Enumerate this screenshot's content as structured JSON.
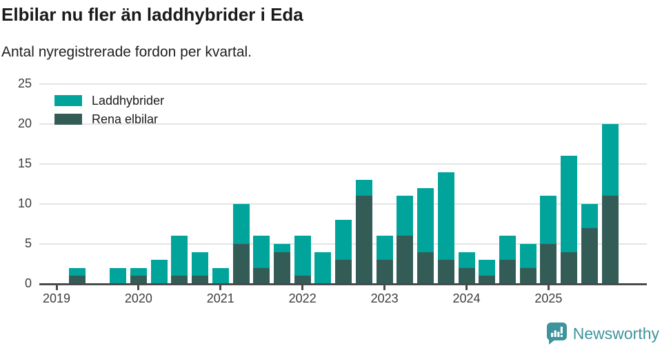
{
  "header": {
    "title": "Elbilar nu fler än laddhybrider i Eda",
    "subtitle": "Antal nyregistrerade fordon per kvartal."
  },
  "footer": {
    "brand": "Newsworthy",
    "logo_icon": "bar-chart-speech-bubble-icon"
  },
  "colors": {
    "laddhybrider": "#00a49b",
    "rena_elbilar": "#345c56",
    "gridline": "#e4e4e4",
    "axis": "#4a4a4a",
    "tick_text": "#3c3c3c",
    "brand": "#3e949c",
    "title_text": "#1a1a1a"
  },
  "chart_data": {
    "type": "bar",
    "stacked": true,
    "title": "Elbilar nu fler än laddhybrider i Eda",
    "subtitle": "Antal nyregistrerade fordon per kvartal.",
    "categories": [
      "2019 Q1",
      "2019 Q2",
      "2019 Q3",
      "2019 Q4",
      "2020 Q1",
      "2020 Q2",
      "2020 Q3",
      "2020 Q4",
      "2021 Q1",
      "2021 Q2",
      "2021 Q3",
      "2021 Q4",
      "2022 Q1",
      "2022 Q2",
      "2022 Q3",
      "2022 Q4",
      "2023 Q1",
      "2023 Q2",
      "2023 Q3",
      "2023 Q4",
      "2024 Q1",
      "2024 Q2",
      "2024 Q3",
      "2024 Q4",
      "2025 Q1",
      "2025 Q2",
      "2025 Q3",
      "2025 Q4"
    ],
    "series": [
      {
        "name": "Laddhybrider",
        "color": "#00a49b",
        "stack_position": "top",
        "values": [
          0,
          1,
          0,
          2,
          1,
          3,
          5,
          3,
          2,
          5,
          4,
          1,
          5,
          4,
          5,
          2,
          3,
          5,
          8,
          11,
          2,
          2,
          3,
          3,
          6,
          12,
          3,
          9
        ]
      },
      {
        "name": "Rena elbilar",
        "color": "#345c56",
        "stack_position": "bottom",
        "values": [
          0,
          1,
          0,
          0,
          1,
          0,
          1,
          1,
          0,
          5,
          2,
          4,
          1,
          0,
          3,
          11,
          3,
          6,
          4,
          3,
          2,
          1,
          3,
          2,
          5,
          4,
          7,
          11
        ]
      }
    ],
    "totals": [
      0,
      2,
      0,
      2,
      2,
      3,
      6,
      4,
      2,
      10,
      6,
      5,
      6,
      4,
      8,
      13,
      6,
      11,
      12,
      14,
      4,
      3,
      6,
      5,
      11,
      16,
      10,
      20
    ],
    "x_tick_labels": [
      "2019",
      "2020",
      "2021",
      "2022",
      "2023",
      "2024",
      "2025"
    ],
    "yticks": [
      0,
      5,
      10,
      15,
      20,
      25
    ],
    "ylim": [
      0,
      25
    ],
    "xlabel": "",
    "ylabel": "",
    "grid": "horizontal",
    "legend_position": "top-left-inside",
    "legend_order": [
      "Laddhybrider",
      "Rena elbilar"
    ]
  }
}
